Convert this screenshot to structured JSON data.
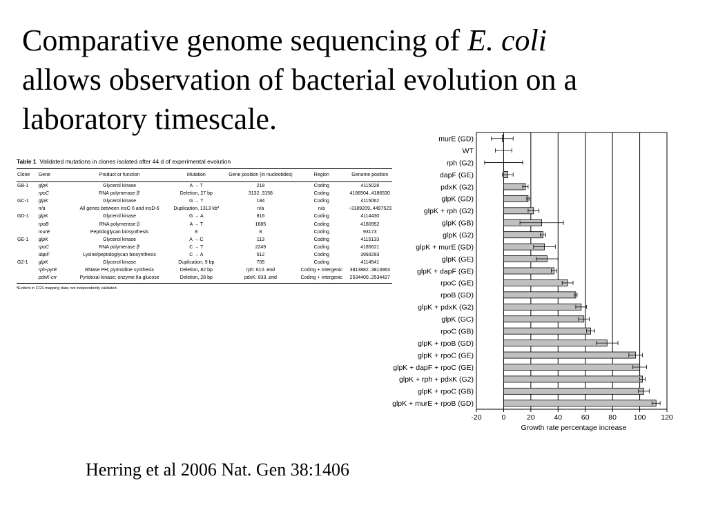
{
  "title": {
    "line1": "Comparative genome sequencing of ",
    "line1_italic": "E. coli",
    "line2": "allows observation of bacterial evolution on a",
    "line3": "laboratory timescale."
  },
  "table": {
    "label": "Table 1",
    "caption": "Validated mutations in clones isolated after 44 d of experimental evolution",
    "columns": [
      "Clone",
      "Gene",
      "Product or function",
      "Mutation",
      "Gene position (in nucleotides)",
      "Region",
      "Genome position"
    ],
    "rows": [
      [
        "GB-1",
        "glpK",
        "Glycerol kinase",
        "A → T",
        "218",
        "Coding",
        "4115028"
      ],
      [
        "",
        "rpoC",
        "RNA polymerase β'",
        "Deletion, 27 bp",
        "3132..3158",
        "Coding",
        "4186504..4186530"
      ],
      [
        "GC-1",
        "glpK",
        "Glycerol kinase",
        "G → T",
        "184",
        "Coding",
        "4115062"
      ],
      [
        "",
        "n/a",
        "All genes between insC-5 and insD-6",
        "Duplication, 1313 kbª",
        "n/a",
        "n/a",
        "~3189209..4497523"
      ],
      [
        "GD-1",
        "glpK",
        "Glycerol kinase",
        "G → A",
        "816",
        "Coding",
        "4114430"
      ],
      [
        "",
        "rpoB",
        "RNA polymerase β",
        "A → T",
        "1685",
        "Coding",
        "4180952"
      ],
      [
        "",
        "murE",
        "Peptidoglycan biosynthesis",
        "8",
        "8",
        "Coding",
        "93173"
      ],
      [
        "GE-1",
        "glpK",
        "Glycerol kinase",
        "A → C",
        "113",
        "Coding",
        "4115133"
      ],
      [
        "",
        "rpoC",
        "RNA polymerase β'",
        "C → T",
        "2249",
        "Coding",
        "4185621"
      ],
      [
        "",
        "dapF",
        "Lysine/peptidoglycan biosynthesis",
        "C → A",
        "512",
        "Coding",
        "3993293"
      ],
      [
        "G2-1",
        "glpK",
        "Glycerol kinase",
        "Duplication, 9 bp",
        "705",
        "Coding",
        "4114541"
      ],
      [
        "",
        "rph-pyrE",
        "RNase PH; pyrimidine synthesis",
        "Deletion, 82 bp",
        "rph: 610..end",
        "Coding + intergenic",
        "3813882..3813963"
      ],
      [
        "",
        "pdxK-crr",
        "Pyridoxal kinase; enzyme IIa glucose",
        "Deletion, 28 bp",
        "pdxK: 833..end",
        "Coding + intergenic",
        "2534400..2534427"
      ]
    ],
    "footnote": "ªEvident in CGS mapping data; not independently validated."
  },
  "chart_data": {
    "type": "bar",
    "orientation": "horizontal",
    "xlabel": "Growth rate percentage increase",
    "xlim": [
      -20,
      120
    ],
    "xticks": [
      -20,
      0,
      20,
      40,
      60,
      80,
      100,
      120
    ],
    "grid": "vertical lines at 0, 20, 40, 60, 80, 100",
    "categories": [
      "murE (GD)",
      "WT",
      "rph (G2)",
      "dapF (GE)",
      "pdxK (G2)",
      "glpK (GD)",
      "glpK + rph (G2)",
      "glpK (GB)",
      "glpK (G2)",
      "glpK + murE (GD)",
      "glpK (GE)",
      "glpK + dapF (GE)",
      "rpoC (GE)",
      "rpoB (GD)",
      "glpK + pdxK (G2)",
      "glpK (GC)",
      "rpoC (GB)",
      "glpK + rpoB (GD)",
      "glpK + rpoC (GE)",
      "glpK + dapF + rpoC (GE)",
      "glpK + rph + pdxK (G2)",
      "glpK + rpoC (GB)",
      "glpK + murE + rpoB (GD)"
    ],
    "values": [
      -1,
      0,
      0,
      3,
      16,
      18,
      22,
      28,
      29,
      30,
      32,
      37,
      47,
      53,
      57,
      59,
      64,
      76,
      97,
      100,
      102,
      103,
      112
    ],
    "error": [
      8,
      6,
      14,
      4,
      2,
      1,
      4,
      16,
      2,
      8,
      8,
      2,
      4,
      1,
      4,
      4,
      3,
      8,
      5,
      5,
      2,
      4,
      3
    ],
    "bar_color": "#c0c0c0"
  },
  "citation": "Herring et al 2006 Nat. Gen 38:1406"
}
